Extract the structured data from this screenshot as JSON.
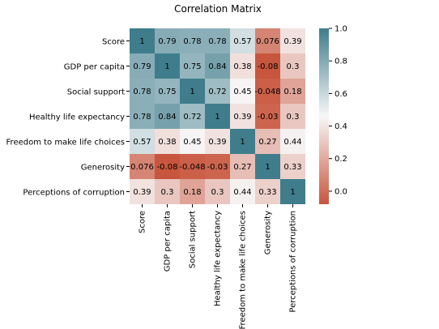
{
  "chart_data": {
    "type": "heatmap",
    "title": "Correlation Matrix",
    "x_categories": [
      "Score",
      "GDP per capita",
      "Social support",
      "Healthy life expectancy",
      "Freedom to make life choices",
      "Generosity",
      "Perceptions of corruption"
    ],
    "y_categories": [
      "Score",
      "GDP per capita",
      "Social support",
      "Healthy life expectancy",
      "Freedom to make life choices",
      "Generosity",
      "Perceptions of corruption"
    ],
    "values": [
      [
        1,
        0.79,
        0.78,
        0.78,
        0.57,
        0.076,
        0.39
      ],
      [
        0.79,
        1,
        0.75,
        0.84,
        0.38,
        -0.08,
        0.3
      ],
      [
        0.78,
        0.75,
        1,
        0.72,
        0.45,
        -0.048,
        0.18
      ],
      [
        0.78,
        0.84,
        0.72,
        1,
        0.39,
        -0.03,
        0.3
      ],
      [
        0.57,
        0.38,
        0.45,
        0.39,
        1,
        0.27,
        0.44
      ],
      [
        0.076,
        -0.08,
        -0.048,
        -0.03,
        0.27,
        1,
        0.33
      ],
      [
        0.39,
        0.3,
        0.18,
        0.3,
        0.44,
        0.33,
        1
      ]
    ],
    "cell_labels": [
      [
        "1",
        "0.79",
        "0.78",
        "0.78",
        "0.57",
        "0.076",
        "0.39"
      ],
      [
        "0.79",
        "1",
        "0.75",
        "0.84",
        "0.38",
        "-0.08",
        "0.3"
      ],
      [
        "0.78",
        "0.75",
        "1",
        "0.72",
        "0.45",
        "-0.048",
        "0.18"
      ],
      [
        "0.78",
        "0.84",
        "0.72",
        "1",
        "0.39",
        "-0.03",
        "0.3"
      ],
      [
        "0.57",
        "0.38",
        "0.45",
        "0.39",
        "1",
        "0.27",
        "0.44"
      ],
      [
        "0.076",
        "-0.08",
        "-0.048",
        "-0.03",
        "0.27",
        "1",
        "0.33"
      ],
      [
        "0.39",
        "0.3",
        "0.18",
        "0.3",
        "0.44",
        "0.33",
        "1"
      ]
    ],
    "colorbar": {
      "min": -0.08,
      "max": 1.0,
      "ticks": [
        0.0,
        0.2,
        0.4,
        0.6,
        0.8,
        1.0
      ],
      "tick_labels": [
        "0.0",
        "0.2",
        "0.4",
        "0.6",
        "0.8",
        "1.0"
      ]
    },
    "colormap": {
      "low": "#c8553d",
      "mid": "#f7f7f7",
      "high": "#3f7d8c"
    },
    "grid": false,
    "legend": "colorbar-right"
  }
}
